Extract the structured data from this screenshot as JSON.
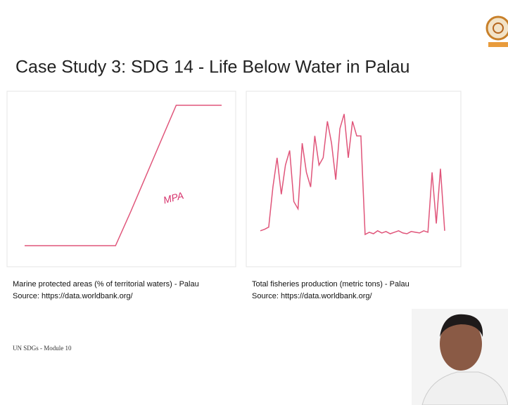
{
  "header": {
    "title": "Case Study 3: SDG 14 - Life Below Water in Palau"
  },
  "chart_data": [
    {
      "type": "line",
      "annotation": "MPA",
      "color": "#e0557a",
      "caption": "Marine protected areas (% of territorial waters) - Palau",
      "source": "Source: https://data.worldbank.org/",
      "categories": [
        null,
        null,
        null,
        null,
        null,
        null,
        null,
        null,
        null,
        null,
        null,
        null,
        null,
        null
      ],
      "values": [
        1,
        1,
        1,
        1,
        1,
        1,
        1,
        25,
        50,
        75,
        100,
        100,
        100,
        100
      ],
      "ylim": [
        0,
        100
      ]
    },
    {
      "type": "line",
      "color": "#e0557a",
      "caption": "Total fisheries production (metric tons) - Palau",
      "source": "Source: https://data.worldbank.org/",
      "categories": [
        null,
        null,
        null,
        null,
        null,
        null,
        null,
        null,
        null,
        null,
        null,
        null,
        null,
        null,
        null,
        null,
        null,
        null,
        null,
        null,
        null,
        null,
        null,
        null,
        null,
        null,
        null,
        null,
        null,
        null,
        null,
        null,
        null,
        null,
        null,
        null,
        null,
        null,
        null,
        null,
        null,
        null,
        null,
        null,
        null
      ],
      "values": [
        300,
        320,
        350,
        900,
        1300,
        800,
        1200,
        1400,
        700,
        600,
        1500,
        1100,
        900,
        1600,
        1200,
        1300,
        1800,
        1500,
        1000,
        1700,
        1900,
        1300,
        1800,
        1600,
        1600,
        250,
        280,
        260,
        300,
        270,
        290,
        260,
        280,
        300,
        270,
        260,
        290,
        280,
        270,
        300,
        280,
        1100,
        400,
        1150,
        300
      ],
      "ylim": [
        0,
        2000
      ]
    }
  ],
  "footer": {
    "left": "UN SDGs - Module 10"
  }
}
